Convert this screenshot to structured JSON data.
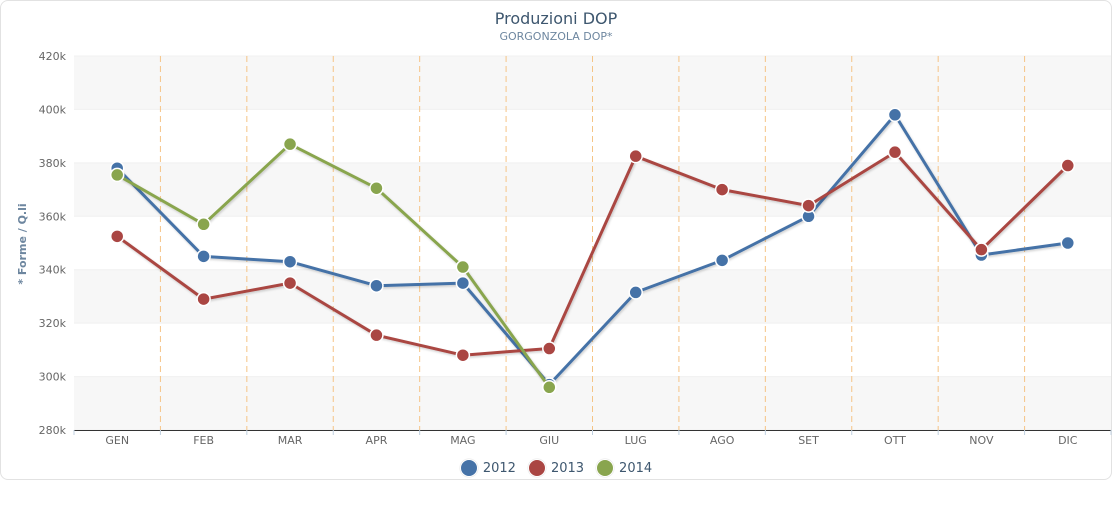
{
  "chart_data": {
    "type": "line",
    "title": "Produzioni DOP",
    "subtitle": "GORGONZOLA DOP*",
    "xlabel": "",
    "ylabel": "* Forme / Q.li",
    "categories": [
      "GEN",
      "FEB",
      "MAR",
      "APR",
      "MAG",
      "GIU",
      "LUG",
      "AGO",
      "SET",
      "OTT",
      "NOV",
      "DIC"
    ],
    "ylim": [
      280000,
      420000
    ],
    "yticks": [
      280000,
      300000,
      320000,
      340000,
      360000,
      380000,
      400000,
      420000
    ],
    "ytick_labels": [
      "280k",
      "300k",
      "320k",
      "340k",
      "360k",
      "380k",
      "400k",
      "420k"
    ],
    "grid": "alternating horizontal bands, dashed vertical category separators",
    "legend_position": "bottom",
    "series": [
      {
        "name": "2012",
        "color": "#4572a7",
        "values": [
          378000,
          345000,
          343000,
          334000,
          335000,
          297000,
          331500,
          343500,
          360000,
          398000,
          345500,
          350000
        ]
      },
      {
        "name": "2013",
        "color": "#aa4643",
        "values": [
          352500,
          329000,
          335000,
          315500,
          308000,
          310500,
          382500,
          370000,
          364000,
          384000,
          347500,
          379000
        ]
      },
      {
        "name": "2014",
        "color": "#89a54e",
        "values": [
          375500,
          357000,
          387000,
          370500,
          341000,
          296000,
          null,
          null,
          null,
          null,
          null,
          null
        ]
      }
    ]
  }
}
